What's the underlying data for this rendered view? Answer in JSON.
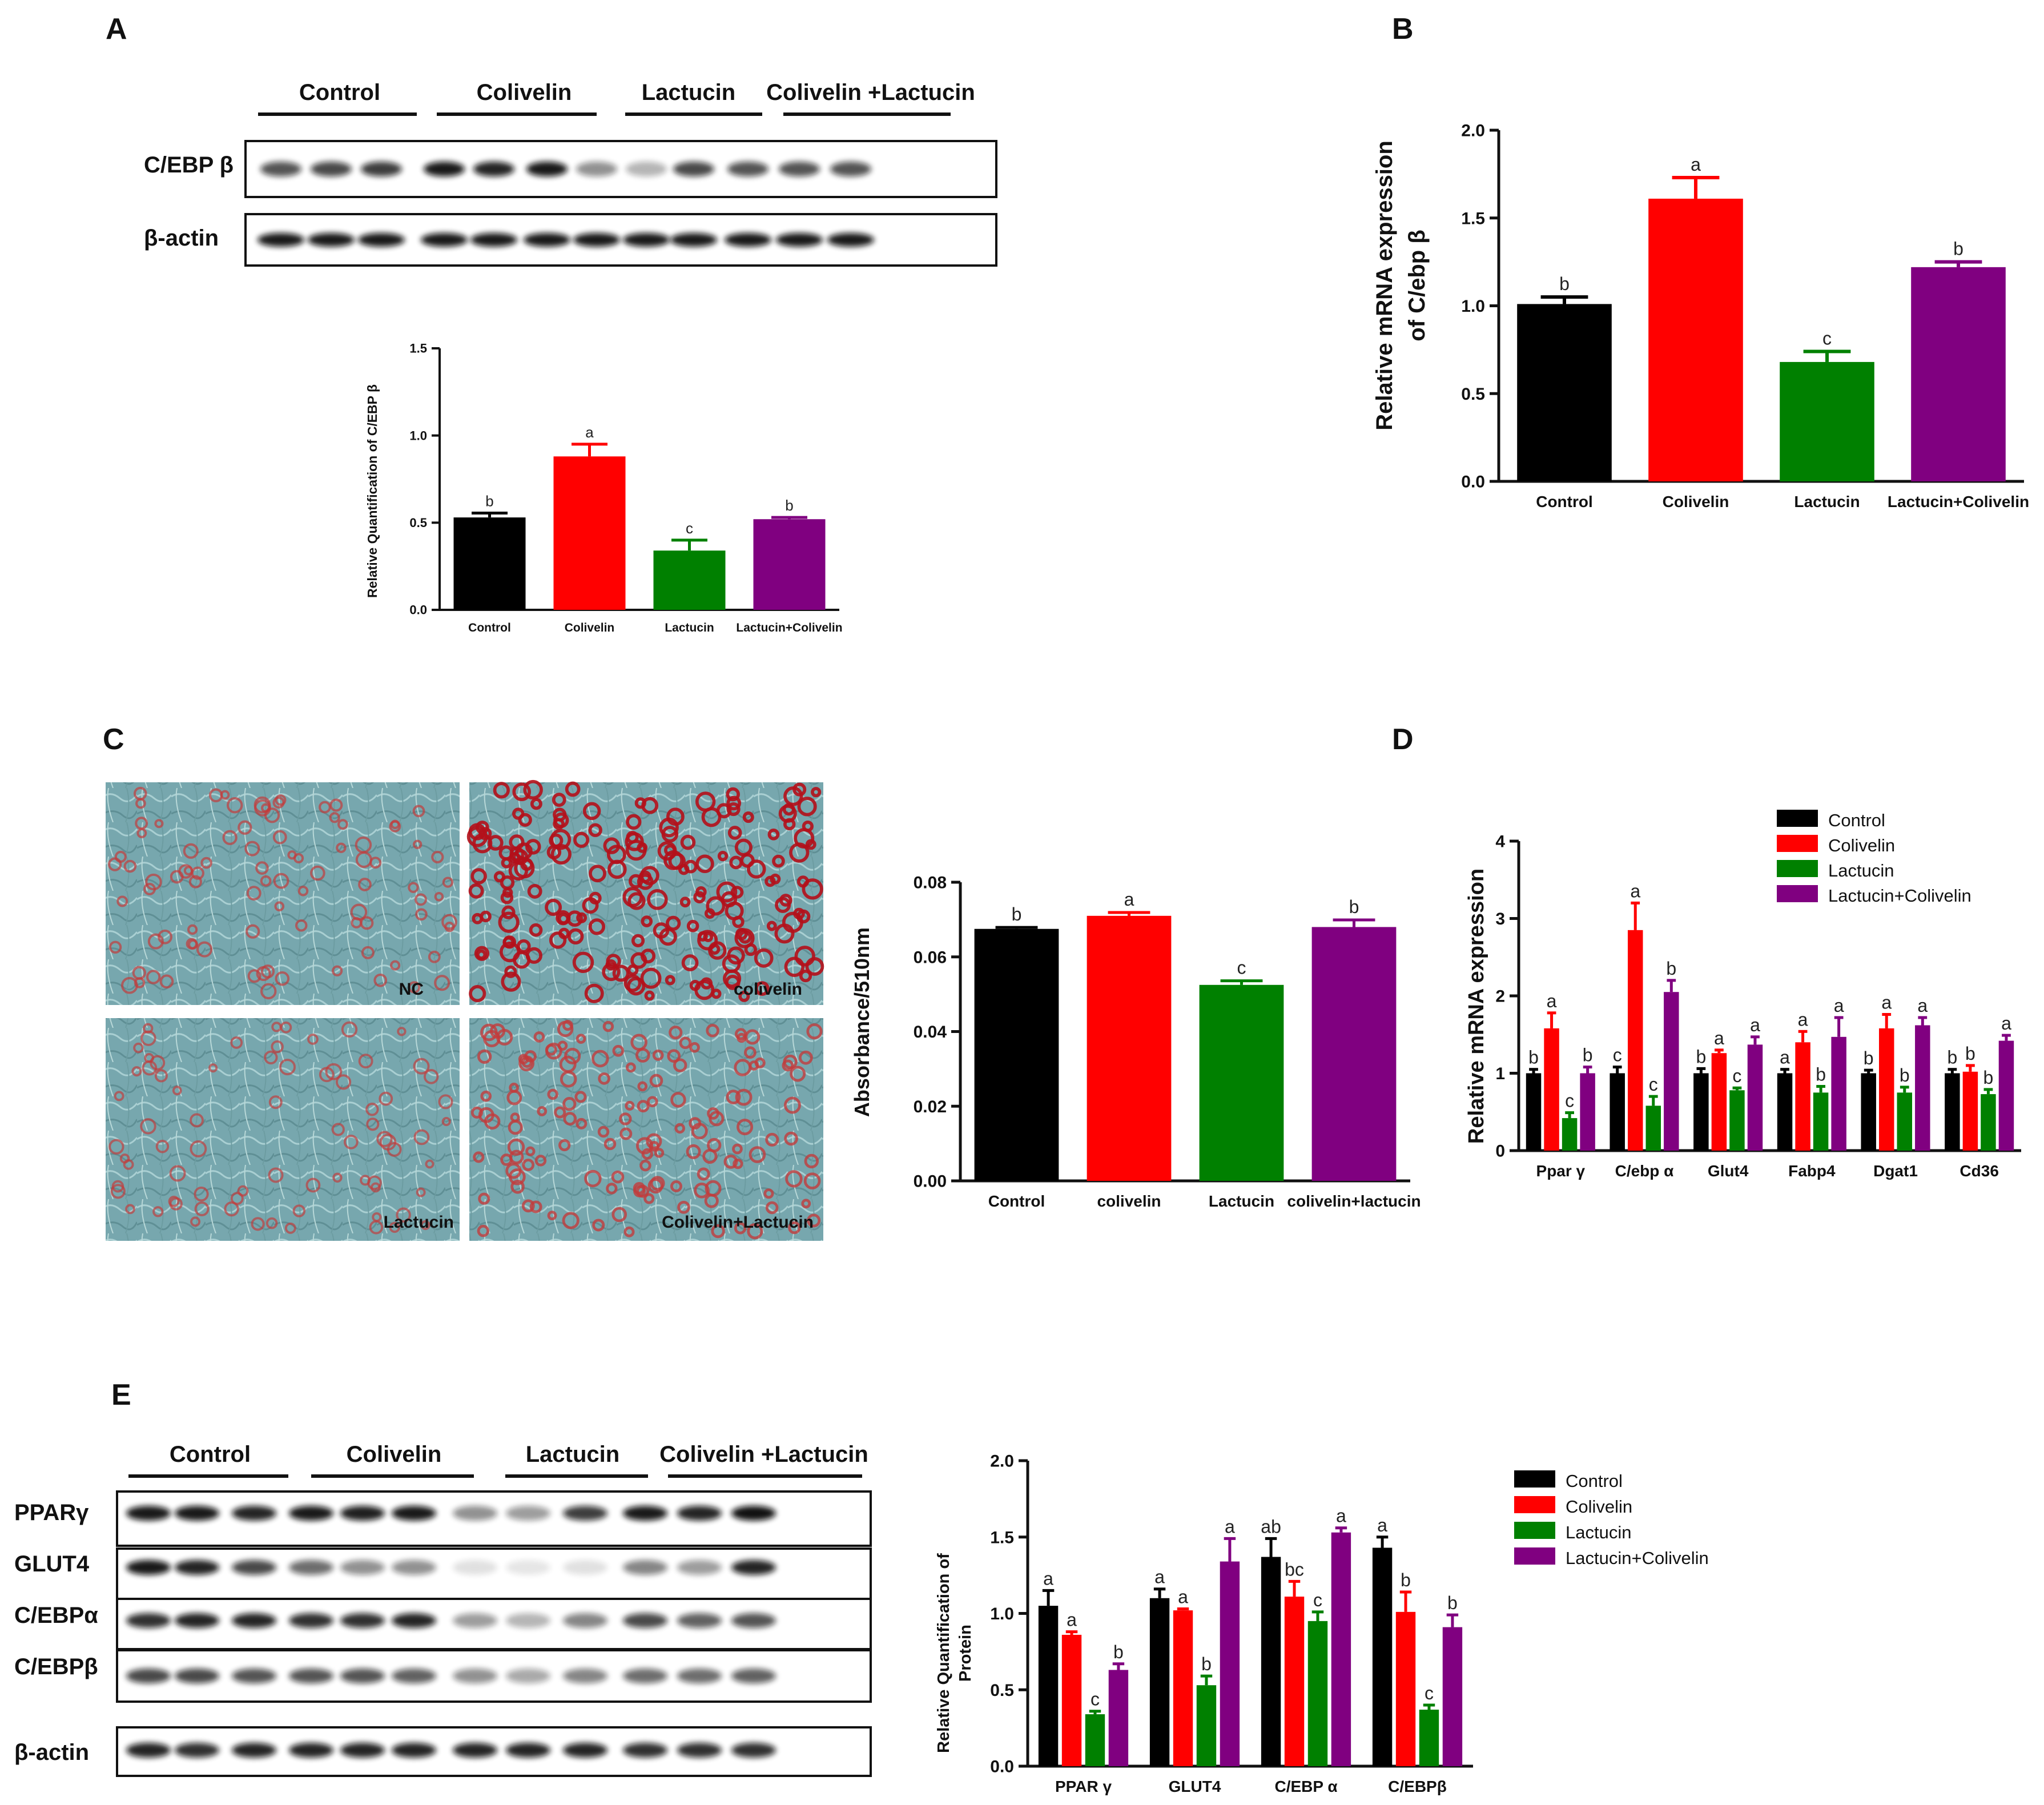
{
  "colors": {
    "Control": "#000000",
    "Colivelin": "#ff0000",
    "Lactucin": "#008000",
    "Combo": "#800080",
    "axis": "#111111"
  },
  "panelA": {
    "letter": "A",
    "groups": [
      "Control",
      "Colivelin",
      "Lactucin",
      "Colivelin +Lactucin"
    ],
    "rows": [
      "C/EBP β",
      "β-actin"
    ],
    "chart_data": {
      "type": "bar",
      "categories": [
        "Control",
        "Colivelin",
        "Lactucin",
        "Lactucin+Colivelin"
      ],
      "values": [
        0.53,
        0.88,
        0.34,
        0.52
      ],
      "errors": [
        0.025,
        0.07,
        0.06,
        0.01
      ],
      "letters": [
        "b",
        "a",
        "c",
        "b"
      ],
      "ylabel": "Relative Quantification of C/EBP β",
      "ylim": [
        0,
        1.5
      ],
      "yticks": [
        "0.0",
        "0.5",
        "1.0",
        "1.5"
      ]
    }
  },
  "panelB": {
    "letter": "B",
    "chart_data": {
      "type": "bar",
      "categories": [
        "Control",
        "Colivelin",
        "Lactucin",
        "Lactucin+Colivelin"
      ],
      "values": [
        1.01,
        1.61,
        0.68,
        1.22
      ],
      "errors": [
        0.04,
        0.12,
        0.06,
        0.03
      ],
      "letters": [
        "b",
        "a",
        "c",
        "b"
      ],
      "ylabel_line1": "Relative mRNA expression",
      "ylabel_line2": "of C/ebp β",
      "ylim": [
        0,
        2.0
      ],
      "yticks": [
        "0.0",
        "0.5",
        "1.0",
        "1.5",
        "2.0"
      ]
    }
  },
  "panelC": {
    "letter": "C",
    "images": [
      "NC",
      "colivelin",
      "Lactucin",
      "Colivelin+Lactucin"
    ],
    "chart_data": {
      "type": "bar",
      "categories": [
        "Control",
        "colivelin",
        "Lactucin",
        "colivelin+lactucin"
      ],
      "values": [
        0.0675,
        0.071,
        0.0525,
        0.068
      ],
      "errors": [
        0.0004,
        0.0009,
        0.0011,
        0.0019
      ],
      "letters": [
        "b",
        "a",
        "c",
        "b"
      ],
      "ylabel": "Absorbance/510nm",
      "ylim": [
        0,
        0.08
      ],
      "yticks": [
        "0.00",
        "0.02",
        "0.04",
        "0.06",
        "0.08"
      ]
    }
  },
  "panelD": {
    "letter": "D",
    "chart_data": {
      "type": "bar",
      "categories": [
        "Ppar γ",
        "C/ebp α",
        "Glut4",
        "Fabp4",
        "Dgat1",
        "Cd36"
      ],
      "series": [
        {
          "name": "Control",
          "values": [
            1.0,
            1.0,
            1.0,
            1.0,
            1.0,
            1.0
          ],
          "errors": [
            0.05,
            0.08,
            0.06,
            0.05,
            0.04,
            0.05
          ],
          "letters": [
            "b",
            "c",
            "b",
            "a",
            "b",
            "b"
          ]
        },
        {
          "name": "Colivelin",
          "values": [
            1.58,
            2.85,
            1.26,
            1.4,
            1.58,
            1.02
          ],
          "errors": [
            0.2,
            0.35,
            0.04,
            0.14,
            0.18,
            0.08
          ],
          "letters": [
            "a",
            "a",
            "a",
            "a",
            "a",
            "b"
          ]
        },
        {
          "name": "Lactucin",
          "values": [
            0.42,
            0.58,
            0.78,
            0.75,
            0.75,
            0.73
          ],
          "errors": [
            0.07,
            0.12,
            0.03,
            0.08,
            0.07,
            0.06
          ],
          "letters": [
            "c",
            "c",
            "c",
            "b",
            "b",
            "b"
          ]
        },
        {
          "name": "Lactucin+Colivelin",
          "values": [
            1.0,
            2.05,
            1.37,
            1.47,
            1.62,
            1.42
          ],
          "errors": [
            0.08,
            0.15,
            0.1,
            0.25,
            0.1,
            0.07
          ],
          "letters": [
            "b",
            "b",
            "a",
            "a",
            "a",
            "a"
          ]
        }
      ],
      "ylabel": "Relative mRNA expression",
      "ylim": [
        0,
        4
      ],
      "yticks": [
        "0",
        "1",
        "2",
        "3",
        "4"
      ]
    }
  },
  "panelE": {
    "letter": "E",
    "groups": [
      "Control",
      "Colivelin",
      "Lactucin",
      "Colivelin +Lactucin"
    ],
    "rows": [
      "PPARγ",
      "GLUT4",
      "C/EBPα",
      "C/EBPβ",
      "β-actin"
    ],
    "chart_data": {
      "type": "bar",
      "categories": [
        "PPAR γ",
        "GLUT4",
        "C/EBP α",
        "C/EBPβ"
      ],
      "series": [
        {
          "name": "Control",
          "values": [
            1.05,
            1.1,
            1.37,
            1.43
          ],
          "errors": [
            0.1,
            0.06,
            0.12,
            0.07
          ],
          "letters": [
            "a",
            "a",
            "ab",
            "a"
          ]
        },
        {
          "name": "Colivelin",
          "values": [
            0.86,
            1.02,
            1.11,
            1.01
          ],
          "errors": [
            0.02,
            0.01,
            0.1,
            0.13
          ],
          "letters": [
            "a",
            "a",
            "bc",
            "b"
          ]
        },
        {
          "name": "Lactucin",
          "values": [
            0.34,
            0.53,
            0.95,
            0.37
          ],
          "errors": [
            0.02,
            0.06,
            0.06,
            0.03
          ],
          "letters": [
            "c",
            "b",
            "c",
            "c"
          ]
        },
        {
          "name": "Lactucin+Colivelin",
          "values": [
            0.63,
            1.34,
            1.53,
            0.91
          ],
          "errors": [
            0.04,
            0.15,
            0.03,
            0.08
          ],
          "letters": [
            "b",
            "a",
            "a",
            "b"
          ]
        }
      ],
      "ylabel_line1": "Relative Quantification of",
      "ylabel_line2": "Protein",
      "ylim": [
        0,
        2.0
      ],
      "yticks": [
        "0.0",
        "0.5",
        "1.0",
        "1.5",
        "2.0"
      ]
    }
  }
}
